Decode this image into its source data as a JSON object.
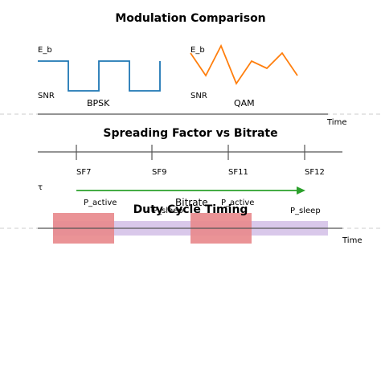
{
  "modulation": {
    "title": "Modulation Comparison",
    "bpsk": {
      "axis_top": "E_b",
      "axis_bottom": "SNR",
      "label": "BPSK"
    },
    "qam": {
      "axis_top": "E_b",
      "axis_bottom": "SNR",
      "label": "QAM"
    },
    "time_label": "Time"
  },
  "spreading": {
    "title": "Spreading Factor vs Bitrate",
    "ticks": [
      "SF7",
      "SF9",
      "SF11",
      "SF12"
    ],
    "tau_label": "τ",
    "arrow_label": "Bitrate"
  },
  "duty": {
    "title": "Duty Cycle Timing",
    "active_labels": [
      "P_active",
      "P_active"
    ],
    "sleep_labels": [
      "P_sleep",
      "P_sleep"
    ],
    "time_label": "Time"
  },
  "colors": {
    "bpsk": "#1f77b4",
    "qam": "#ff7f0e",
    "arrow": "#2ca02c",
    "active": "#e88a8d",
    "sleep": "#d9c8ea",
    "axis": "#555555",
    "dashed": "#cccccc"
  }
}
